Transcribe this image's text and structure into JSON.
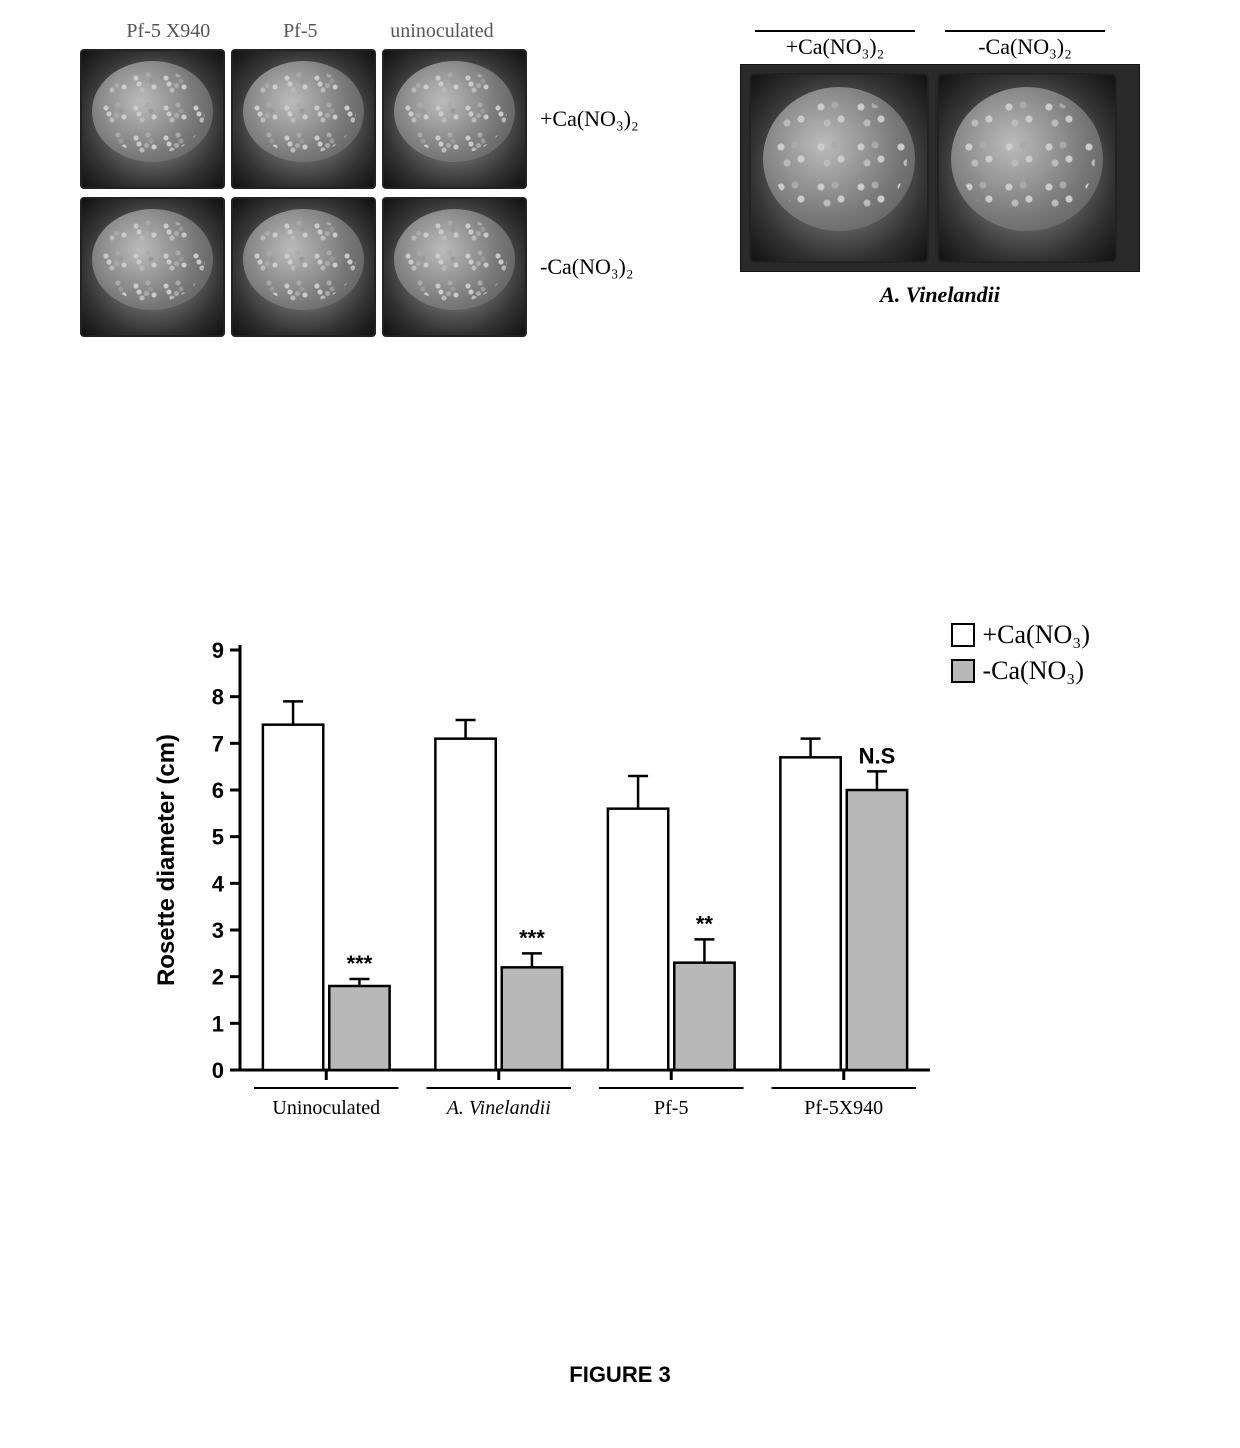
{
  "top": {
    "left_labels": [
      "Pf-5 X940",
      "Pf-5",
      "uninoculated"
    ],
    "row1_label": "+Ca(NO₃)₂",
    "row2_label": "-Ca(NO₃)₂",
    "right_labels": [
      "+Ca(NO₃)₂",
      "-Ca(NO₃)₂"
    ],
    "right_caption": "A. Vinelandii"
  },
  "chart": {
    "type": "grouped-bar",
    "ylabel": "Rosette diameter (cm)",
    "ylim": [
      0,
      9
    ],
    "ytick_step": 1,
    "categories": [
      "Uninoculated",
      "A. Vinelandii",
      "Pf-5",
      "Pf-5X940"
    ],
    "category_styles": [
      "normal",
      "italic",
      "normal",
      "normal"
    ],
    "series": [
      {
        "name": "+Ca(NO₃)",
        "color": "#ffffff"
      },
      {
        "name": "-Ca(NO₃)",
        "color": "#b8b8b8"
      }
    ],
    "data": {
      "plus": [
        7.4,
        7.1,
        5.6,
        6.7
      ],
      "plus_err": [
        0.5,
        0.4,
        0.7,
        0.4
      ],
      "minus": [
        1.8,
        2.2,
        2.3,
        6.0
      ],
      "minus_err": [
        0.15,
        0.3,
        0.5,
        0.4
      ]
    },
    "annotations": [
      "***",
      "***",
      "**",
      "N.S"
    ],
    "bar_width": 0.35,
    "axis_color": "#000000",
    "axis_width": 3,
    "bar_stroke": "#000000",
    "bar_stroke_width": 2.5,
    "label_fontsize": 24,
    "tick_fontsize": 22,
    "xcat_fontsize": 20,
    "annotation_fontsize": 22,
    "legend_fontsize": 26
  },
  "figure_label": "FIGURE 3"
}
